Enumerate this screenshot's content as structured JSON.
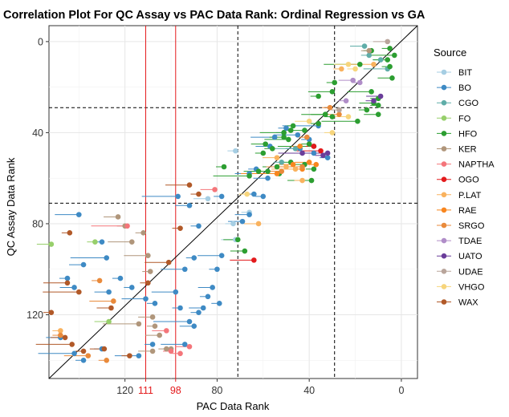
{
  "chart_data": {
    "type": "scatter",
    "title": "Correlation Plot For QC Assay vs PAC Data Rank: Ordinal Regression vs GA",
    "xlabel": "PAC Data Rank",
    "ylabel": "QC Assay Data Rank",
    "xlim": [
      153,
      -7
    ],
    "ylim": [
      148,
      -7
    ],
    "x_reversed": true,
    "y_reversed": true,
    "x_ticks": [
      120,
      80,
      40,
      0
    ],
    "y_ticks": [
      0,
      40,
      80,
      120
    ],
    "x_highlight_ticks": [
      111,
      98
    ],
    "grid": true,
    "legend_title": "Source",
    "legend_position": "right",
    "reference_lines": {
      "diagonal": "y = x",
      "vertical_solid_red": [
        111,
        98
      ],
      "vertical_dashed": [
        71,
        29
      ],
      "horizontal_dashed": [
        29,
        71
      ]
    },
    "series": [
      {
        "name": "BIT",
        "color": "#a6cee3",
        "points": [
          [
            72,
            48
          ],
          [
            84,
            69
          ],
          [
            73,
            80
          ],
          [
            72,
            87
          ],
          [
            66,
            75
          ]
        ]
      },
      {
        "name": "BO",
        "color": "#3e8ac4",
        "points": [
          [
            140,
            76
          ],
          [
            130,
            88
          ],
          [
            128,
            95
          ],
          [
            138,
            98
          ],
          [
            145,
            104
          ],
          [
            142,
            108
          ],
          [
            122,
            104
          ],
          [
            127,
            110
          ],
          [
            117,
            108
          ],
          [
            111,
            113
          ],
          [
            107,
            115
          ],
          [
            98,
            110
          ],
          [
            96,
            117
          ],
          [
            92,
            123
          ],
          [
            90,
            125
          ],
          [
            88,
            119
          ],
          [
            86,
            117
          ],
          [
            84,
            112
          ],
          [
            82,
            108
          ],
          [
            80,
            100
          ],
          [
            78,
            94
          ],
          [
            90,
            95
          ],
          [
            94,
            100
          ],
          [
            88,
            81
          ],
          [
            97,
            68
          ],
          [
            92,
            72
          ],
          [
            78,
            68
          ],
          [
            66,
            58
          ],
          [
            63,
            56
          ],
          [
            57,
            46
          ],
          [
            51,
            40
          ],
          [
            55,
            42
          ],
          [
            50,
            38
          ],
          [
            45,
            41
          ],
          [
            40,
            43
          ],
          [
            36,
            37
          ],
          [
            38,
            49
          ],
          [
            32,
            51
          ],
          [
            44,
            47
          ],
          [
            64,
            67
          ],
          [
            58,
            60
          ],
          [
            60,
            68
          ],
          [
            94,
            133
          ],
          [
            108,
            133
          ],
          [
            114,
            138
          ],
          [
            138,
            140
          ],
          [
            142,
            137
          ],
          [
            148,
            130
          ],
          [
            130,
            135
          ],
          [
            69,
            79
          ],
          [
            79,
            115
          ],
          [
            66,
            76
          ]
        ]
      },
      {
        "name": "CGO",
        "color": "#5fada8",
        "points": [
          [
            16,
            2
          ],
          [
            9,
            8
          ],
          [
            6,
            12
          ],
          [
            14,
            6
          ],
          [
            46,
            47
          ],
          [
            52,
            53
          ]
        ]
      },
      {
        "name": "FO",
        "color": "#97cf6b",
        "points": [
          [
            152,
            89
          ],
          [
            133,
            88
          ],
          [
            127,
            123
          ]
        ]
      },
      {
        "name": "HFO",
        "color": "#2c9e31",
        "points": [
          [
            5,
            3
          ],
          [
            3,
            6
          ],
          [
            13,
            4
          ],
          [
            18,
            10
          ],
          [
            6,
            8
          ],
          [
            30,
            33
          ],
          [
            33,
            32
          ],
          [
            36,
            36
          ],
          [
            42,
            39
          ],
          [
            48,
            39
          ],
          [
            51,
            40
          ],
          [
            47,
            37
          ],
          [
            49,
            43
          ],
          [
            40,
            45
          ],
          [
            38,
            46
          ],
          [
            51,
            42
          ],
          [
            56,
            47
          ],
          [
            54,
            55
          ],
          [
            48,
            53
          ],
          [
            42,
            54
          ],
          [
            38,
            56
          ],
          [
            39,
            61
          ],
          [
            53,
            58
          ],
          [
            58,
            57
          ],
          [
            62,
            57
          ],
          [
            66,
            59
          ],
          [
            59,
            45
          ],
          [
            60,
            49
          ],
          [
            71,
            87
          ],
          [
            77,
            55
          ],
          [
            68,
            92
          ],
          [
            36,
            24
          ],
          [
            30,
            22
          ],
          [
            29,
            18
          ],
          [
            13,
            22
          ],
          [
            10,
            25
          ],
          [
            19,
            35
          ],
          [
            10,
            32
          ],
          [
            5,
            11
          ],
          [
            4,
            16
          ],
          [
            15,
            30
          ],
          [
            12,
            27
          ],
          [
            10,
            28
          ],
          [
            33,
            32
          ]
        ]
      },
      {
        "name": "KER",
        "color": "#b0967b",
        "points": [
          [
            14,
            4
          ],
          [
            123,
            77
          ],
          [
            120,
            81
          ],
          [
            117,
            88
          ],
          [
            112,
            84
          ],
          [
            110,
            94
          ],
          [
            109,
            101
          ],
          [
            114,
            124
          ],
          [
            108,
            121
          ],
          [
            107,
            125
          ],
          [
            105,
            129
          ],
          [
            102,
            135
          ],
          [
            108,
            136
          ],
          [
            100,
            135
          ]
        ]
      },
      {
        "name": "NAPTHA",
        "color": "#f4757a",
        "points": [
          [
            119,
            81
          ],
          [
            102,
            127
          ],
          [
            96,
            137
          ],
          [
            92,
            134
          ],
          [
            100,
            136
          ],
          [
            81,
            65
          ]
        ]
      },
      {
        "name": "OGO",
        "color": "#e31a1c",
        "points": [
          [
            64,
            96
          ],
          [
            38,
            46
          ],
          [
            35,
            48
          ]
        ]
      },
      {
        "name": "P.LAT",
        "color": "#f9b25e",
        "points": [
          [
            62,
            80
          ],
          [
            148,
            127
          ],
          [
            54,
            51
          ],
          [
            50,
            55
          ],
          [
            46,
            56
          ],
          [
            43,
            61
          ],
          [
            12,
            10
          ],
          [
            26,
            12
          ]
        ]
      },
      {
        "name": "RAE",
        "color": "#f8861f",
        "points": [
          [
            43,
            56
          ],
          [
            54,
            58
          ],
          [
            40,
            53
          ],
          [
            37,
            54
          ],
          [
            47,
            54
          ],
          [
            44,
            46
          ]
        ]
      },
      {
        "name": "SRGO",
        "color": "#e98a3b",
        "points": [
          [
            131,
            105
          ],
          [
            125,
            114
          ],
          [
            148,
            129
          ],
          [
            136,
            138
          ],
          [
            128,
            140
          ],
          [
            43,
            55
          ],
          [
            52,
            57
          ],
          [
            41,
            42
          ],
          [
            27,
            32
          ],
          [
            31,
            29
          ]
        ]
      },
      {
        "name": "TDAE",
        "color": "#b08dc8",
        "points": [
          [
            18,
            18
          ],
          [
            21,
            17
          ],
          [
            24,
            26
          ]
        ]
      },
      {
        "name": "UATO",
        "color": "#6a3d9a",
        "points": [
          [
            43,
            49
          ],
          [
            34,
            50
          ],
          [
            32,
            49
          ],
          [
            9,
            24
          ],
          [
            12,
            26
          ]
        ]
      },
      {
        "name": "UDAE",
        "color": "#b9a59b",
        "points": [
          [
            6,
            0
          ],
          [
            27,
            30
          ]
        ]
      },
      {
        "name": "VHGO",
        "color": "#f7d57c",
        "points": [
          [
            23,
            10
          ],
          [
            20,
            12
          ],
          [
            23,
            33
          ],
          [
            30,
            40
          ],
          [
            40,
            35
          ],
          [
            67,
            67
          ]
        ]
      },
      {
        "name": "WAX",
        "color": "#b15928",
        "points": [
          [
            144,
            84
          ],
          [
            145,
            106
          ],
          [
            152,
            119
          ],
          [
            140,
            110
          ],
          [
            146,
            130
          ],
          [
            138,
            136
          ],
          [
            129,
            135
          ],
          [
            118,
            138
          ],
          [
            126,
            117
          ],
          [
            110,
            106
          ],
          [
            101,
            97
          ],
          [
            96,
            82
          ],
          [
            92,
            63
          ],
          [
            88,
            67
          ],
          [
            143,
            133
          ]
        ]
      }
    ]
  }
}
